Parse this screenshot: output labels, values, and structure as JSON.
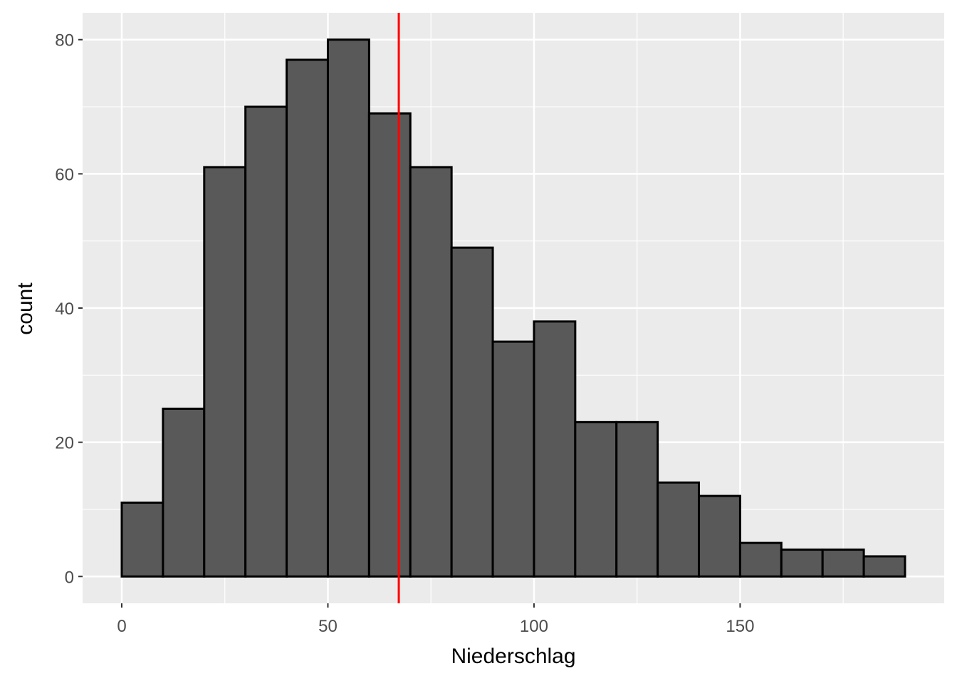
{
  "chart_data": {
    "type": "bar",
    "subtype": "histogram",
    "title": "",
    "xlabel": "Niederschlag",
    "ylabel": "count",
    "bin_width": 10,
    "bins": [
      {
        "start": 0,
        "end": 10,
        "count": 11
      },
      {
        "start": 10,
        "end": 20,
        "count": 25
      },
      {
        "start": 20,
        "end": 30,
        "count": 61
      },
      {
        "start": 30,
        "end": 40,
        "count": 70
      },
      {
        "start": 40,
        "end": 50,
        "count": 77
      },
      {
        "start": 50,
        "end": 60,
        "count": 80
      },
      {
        "start": 60,
        "end": 70,
        "count": 69
      },
      {
        "start": 70,
        "end": 80,
        "count": 61
      },
      {
        "start": 80,
        "end": 90,
        "count": 49
      },
      {
        "start": 90,
        "end": 100,
        "count": 35
      },
      {
        "start": 100,
        "end": 110,
        "count": 38
      },
      {
        "start": 110,
        "end": 120,
        "count": 23
      },
      {
        "start": 120,
        "end": 130,
        "count": 23
      },
      {
        "start": 130,
        "end": 140,
        "count": 14
      },
      {
        "start": 140,
        "end": 150,
        "count": 12
      },
      {
        "start": 150,
        "end": 160,
        "count": 5
      },
      {
        "start": 160,
        "end": 170,
        "count": 4
      },
      {
        "start": 170,
        "end": 180,
        "count": 4
      },
      {
        "start": 180,
        "end": 190,
        "count": 3
      }
    ],
    "vline": {
      "x": 67.2,
      "color": "#ff0000"
    },
    "xlim": [
      -9.5,
      199.5
    ],
    "ylim": [
      -4,
      84
    ],
    "x_ticks": [
      0,
      50,
      100,
      150
    ],
    "x_tick_labels": [
      "0",
      "50",
      "100",
      "150"
    ],
    "x_minor": [
      25,
      75,
      125,
      175
    ],
    "y_ticks": [
      0,
      20,
      40,
      60,
      80
    ],
    "y_tick_labels": [
      "0",
      "20",
      "40",
      "60",
      "80"
    ],
    "y_minor": [
      10,
      30,
      50,
      70
    ],
    "grid": true,
    "colors": {
      "panel": "#ebebeb",
      "bar_fill": "#595959",
      "bar_outline": "#000000",
      "grid": "#ffffff"
    }
  }
}
